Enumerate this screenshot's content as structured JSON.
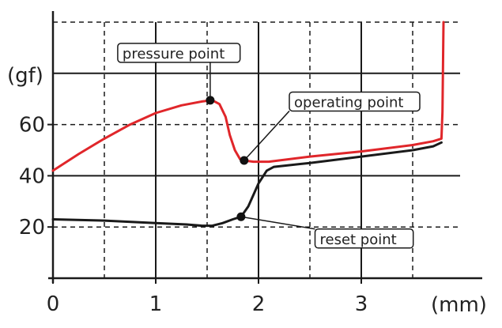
{
  "chart_data": {
    "type": "line",
    "title": "",
    "xlabel": "(mm)",
    "ylabel": "(gf)",
    "xlim": [
      0,
      3.85
    ],
    "ylim": [
      0,
      100
    ],
    "x_ticks": [
      {
        "value": 0,
        "label": "0"
      },
      {
        "value": 1,
        "label": "1"
      },
      {
        "value": 2,
        "label": "2"
      },
      {
        "value": 3,
        "label": "3"
      }
    ],
    "y_ticks": [
      {
        "value": 20,
        "label": "20"
      },
      {
        "value": 40,
        "label": "40"
      },
      {
        "value": 60,
        "label": "60"
      }
    ],
    "x_grid_solid": [
      0,
      1,
      2,
      3
    ],
    "x_grid_dashed": [
      0.5,
      1.5,
      2.5,
      3.5
    ],
    "y_grid_solid": [
      40,
      80
    ],
    "y_grid_dashed": [
      20,
      60,
      100
    ],
    "grid": true,
    "legend": "none",
    "series": [
      {
        "color": "#e0262a",
        "x": [
          0,
          0.25,
          0.5,
          0.75,
          1.0,
          1.25,
          1.45,
          1.55,
          1.62,
          1.68,
          1.72,
          1.77,
          1.82,
          1.86,
          1.95,
          2.1,
          2.5,
          3.0,
          3.5,
          3.7,
          3.78,
          3.79,
          3.8
        ],
        "values": [
          42,
          48.5,
          54.5,
          60,
          64.5,
          67.5,
          69,
          69.5,
          68,
          63,
          56,
          50,
          46.5,
          46,
          45.5,
          45.5,
          47.5,
          49.5,
          52,
          53.5,
          54.5,
          65,
          100
        ]
      },
      {
        "color": "#1a1a1a",
        "x": [
          0,
          0.5,
          1.0,
          1.3,
          1.45,
          1.55,
          1.65,
          1.75,
          1.83,
          1.9,
          2.0,
          2.08,
          2.15,
          2.5,
          3.0,
          3.5,
          3.7,
          3.78
        ],
        "values": [
          23,
          22.5,
          21.5,
          21,
          20.5,
          20.5,
          21.5,
          23,
          24,
          28,
          37,
          42,
          43.5,
          45,
          47.5,
          50,
          51.5,
          53
        ]
      }
    ],
    "annotations": [
      {
        "label": "pressure point",
        "x": 1.53,
        "y": 69.5,
        "box_x": 0.63,
        "box_y": 88
      },
      {
        "label": "operating point",
        "x": 1.86,
        "y": 46,
        "box_x": 2.3,
        "box_y": 69
      },
      {
        "label": "reset point",
        "x": 1.83,
        "y": 24,
        "box_x": 2.55,
        "box_y": 15.5
      }
    ]
  }
}
